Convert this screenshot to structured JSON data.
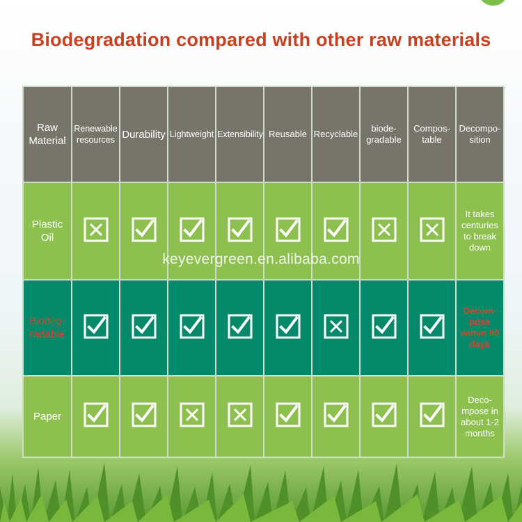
{
  "title": "Biodegradation compared with other raw materials",
  "watermark": "keyevergreen.en.alibaba.com",
  "colors": {
    "title": "#c8401e",
    "header_bg": "#77756a",
    "light_green": "#8ec04f",
    "dark_green": "#048a6a",
    "highlight_text": "#d9442a"
  },
  "headers": [
    "Raw Material",
    "Renewable resources",
    "Durability",
    "Lightweight",
    "Extensibility",
    "Reusable",
    "Recyclable",
    "biode-gradable",
    "Compos-table",
    "Decompo-sition"
  ],
  "rows": [
    {
      "label": "Plastic Oil",
      "marks": [
        "cross",
        "check",
        "check",
        "check",
        "check",
        "check",
        "cross",
        "cross"
      ],
      "note": "It takes centuries to break down"
    },
    {
      "label": "Biodeg-radable",
      "marks": [
        "check",
        "check",
        "check",
        "check",
        "check",
        "cross",
        "check",
        "check"
      ],
      "note": "Decom-pose within 90 days"
    },
    {
      "label": "Paper",
      "marks": [
        "check",
        "check",
        "cross",
        "cross",
        "check",
        "check",
        "check",
        "check"
      ],
      "note": "Deco-mpose in about 1-2 months"
    }
  ]
}
